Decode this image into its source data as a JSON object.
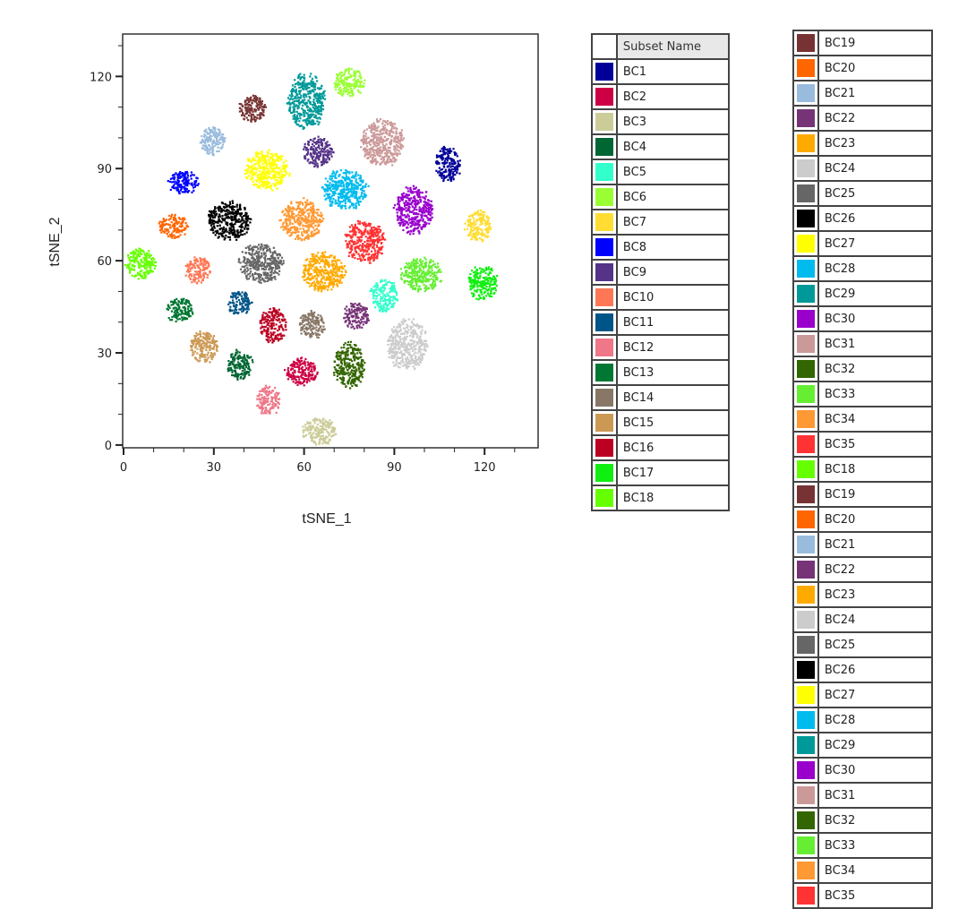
{
  "chart_data": {
    "type": "scatter",
    "title": "",
    "xlabel": "tSNE_1",
    "ylabel": "tSNE_2",
    "xlim": [
      -0.3,
      137.8
    ],
    "ylim": [
      -0.9,
      133.8
    ],
    "xticks": [
      0,
      30,
      60,
      90,
      120
    ],
    "yticks": [
      0,
      30,
      60,
      90,
      120
    ],
    "grid": false,
    "legend_placement": "right",
    "legend_header": "Subset Name",
    "series": [
      {
        "name": "BC1",
        "color": "#000099",
        "center": [
          107.7,
          91.5
        ],
        "spread": [
          4.5,
          6
        ]
      },
      {
        "name": "BC2",
        "color": "#cc0044",
        "center": [
          59.2,
          23.9
        ],
        "spread": [
          5.5,
          4.5
        ]
      },
      {
        "name": "BC3",
        "color": "#cccc99",
        "center": [
          65.2,
          4.4
        ],
        "spread": [
          6,
          4.5
        ]
      },
      {
        "name": "BC4",
        "color": "#006633",
        "center": [
          38.7,
          26.2
        ],
        "spread": [
          4.3,
          5
        ]
      },
      {
        "name": "BC5",
        "color": "#33ffcc",
        "center": [
          86.6,
          48.7
        ],
        "spread": [
          4.8,
          5.2
        ]
      },
      {
        "name": "BC6",
        "color": "#99ff33",
        "center": [
          75,
          118
        ],
        "spread": [
          5.3,
          4.7
        ]
      },
      {
        "name": "BC7",
        "color": "#ffdd33",
        "center": [
          117.9,
          71.1
        ],
        "spread": [
          4.5,
          5.3
        ]
      },
      {
        "name": "BC8",
        "color": "#0000ff",
        "center": [
          19.9,
          85.7
        ],
        "spread": [
          5.3,
          4
        ]
      },
      {
        "name": "BC9",
        "color": "#553388",
        "center": [
          64.6,
          95.3
        ],
        "spread": [
          5.3,
          5
        ]
      },
      {
        "name": "BC10",
        "color": "#ff7755",
        "center": [
          24.7,
          56.9
        ],
        "spread": [
          4.2,
          4.7
        ]
      },
      {
        "name": "BC11",
        "color": "#005588",
        "center": [
          38.4,
          46.4
        ],
        "spread": [
          4.5,
          4
        ]
      },
      {
        "name": "BC12",
        "color": "#ee7788",
        "center": [
          48.2,
          14.3
        ],
        "spread": [
          3.9,
          5
        ]
      },
      {
        "name": "BC13",
        "color": "#007733",
        "center": [
          18.5,
          44
        ],
        "spread": [
          4.8,
          4
        ]
      },
      {
        "name": "BC14",
        "color": "#887766",
        "center": [
          62.5,
          39
        ],
        "spread": [
          4.5,
          4.7
        ]
      },
      {
        "name": "BC15",
        "color": "#cc9955",
        "center": [
          26.8,
          32
        ],
        "spread": [
          5,
          5.2
        ]
      },
      {
        "name": "BC16",
        "color": "#bb0022",
        "center": [
          49.7,
          39
        ],
        "spread": [
          4.5,
          5.8
        ]
      },
      {
        "name": "BC17",
        "color": "#11ee11",
        "center": [
          119.3,
          52.8
        ],
        "spread": [
          5,
          5.8
        ]
      },
      {
        "name": "BC18",
        "color": "#66ff00",
        "center": [
          5.7,
          58.9
        ],
        "spread": [
          5.3,
          5
        ]
      },
      {
        "name": "BC19",
        "color": "#773333",
        "center": [
          42.9,
          109.6
        ],
        "spread": [
          4.5,
          4.7
        ]
      },
      {
        "name": "BC20",
        "color": "#ff6600",
        "center": [
          16.4,
          71.1
        ],
        "spread": [
          5,
          4
        ]
      },
      {
        "name": "BC21",
        "color": "#99bbdd",
        "center": [
          29.8,
          98.8
        ],
        "spread": [
          4.5,
          4.7
        ]
      },
      {
        "name": "BC22",
        "color": "#773377",
        "center": [
          77.4,
          42
        ],
        "spread": [
          4.5,
          4.4
        ]
      },
      {
        "name": "BC23",
        "color": "#ffaa00",
        "center": [
          66.4,
          56.3
        ],
        "spread": [
          7.4,
          6.7
        ]
      },
      {
        "name": "BC24",
        "color": "#cccccc",
        "center": [
          94.3,
          32.7
        ],
        "spread": [
          6.8,
          8.5
        ]
      },
      {
        "name": "BC25",
        "color": "#666666",
        "center": [
          45.5,
          59.2
        ],
        "spread": [
          7.7,
          6.4
        ]
      },
      {
        "name": "BC26",
        "color": "#000000",
        "center": [
          35.1,
          72.9
        ],
        "spread": [
          7.7,
          6.4
        ]
      },
      {
        "name": "BC27",
        "color": "#ffff00",
        "center": [
          47.6,
          89.5
        ],
        "spread": [
          7.4,
          6.7
        ]
      },
      {
        "name": "BC28",
        "color": "#00bbee",
        "center": [
          73.8,
          83.1
        ],
        "spread": [
          7.7,
          6.7
        ]
      },
      {
        "name": "BC29",
        "color": "#009999",
        "center": [
          60.7,
          112
        ],
        "spread": [
          6.5,
          9
        ]
      },
      {
        "name": "BC30",
        "color": "#9900cc",
        "center": [
          96.4,
          76.4
        ],
        "spread": [
          6.5,
          7.9
        ]
      },
      {
        "name": "BC31",
        "color": "#cc9999",
        "center": [
          86,
          98.3
        ],
        "spread": [
          7.4,
          7.9
        ]
      },
      {
        "name": "BC32",
        "color": "#336600",
        "center": [
          75,
          25.9
        ],
        "spread": [
          5.3,
          7.6
        ]
      },
      {
        "name": "BC33",
        "color": "#66ee33",
        "center": [
          99.1,
          55.7
        ],
        "spread": [
          7.1,
          5.8
        ]
      },
      {
        "name": "BC34",
        "color": "#ff9933",
        "center": [
          59.2,
          73.2
        ],
        "spread": [
          7.1,
          7
        ]
      },
      {
        "name": "BC35",
        "color": "#ff3333",
        "center": [
          80.1,
          66.2
        ],
        "spread": [
          6.8,
          7
        ]
      }
    ]
  }
}
